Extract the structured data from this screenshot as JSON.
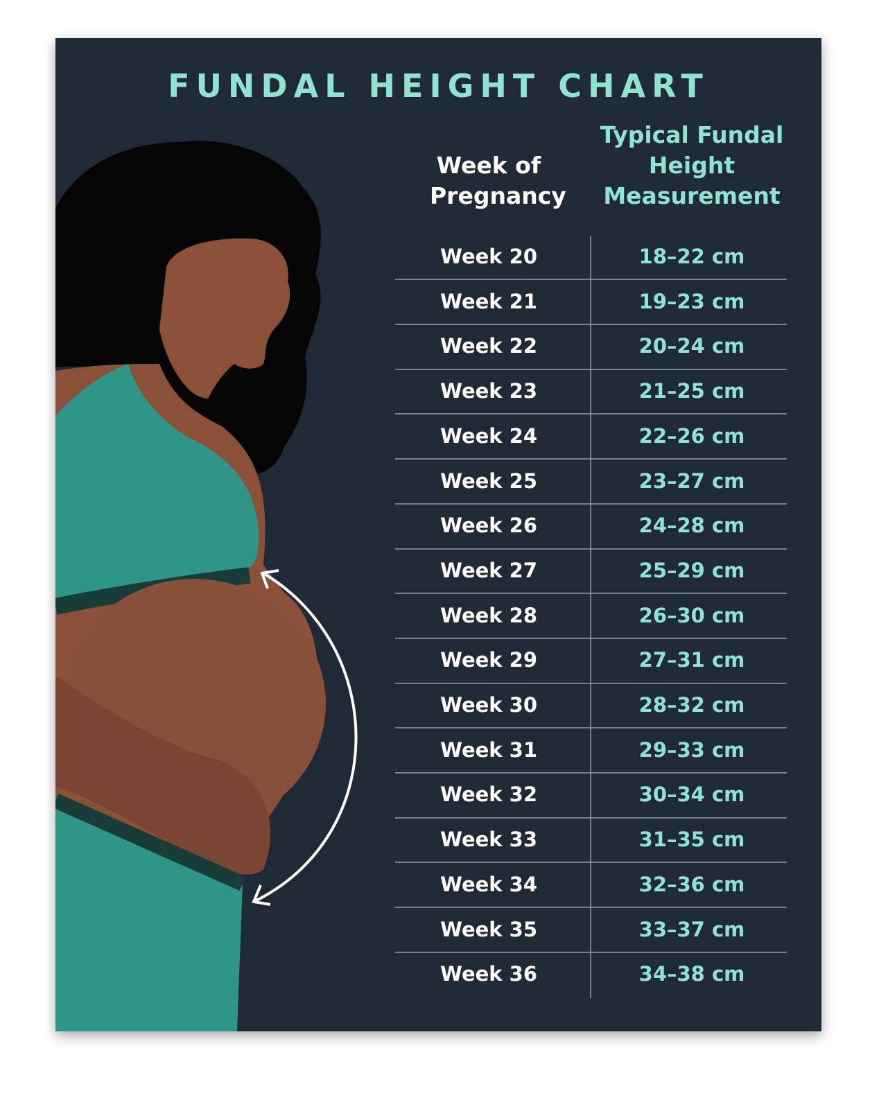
{
  "header": {
    "title": "FUNDAL HEIGHT CHART"
  },
  "table": {
    "columns": [
      "Week of Pregnancy",
      "Typical Fundal Height Measurement"
    ],
    "rows": [
      [
        "Week 20",
        "18–22 cm"
      ],
      [
        "Week 21",
        "19–23 cm"
      ],
      [
        "Week 22",
        "20–24 cm"
      ],
      [
        "Week 23",
        "21–25 cm"
      ],
      [
        "Week 24",
        "22–26 cm"
      ],
      [
        "Week 25",
        "23–27 cm"
      ],
      [
        "Week 26",
        "24–28 cm"
      ],
      [
        "Week 27",
        "25–29 cm"
      ],
      [
        "Week 28",
        "26–30 cm"
      ],
      [
        "Week 29",
        "27–31 cm"
      ],
      [
        "Week 30",
        "28–32 cm"
      ],
      [
        "Week 31",
        "29–33 cm"
      ],
      [
        "Week 32",
        "30–34 cm"
      ],
      [
        "Week 33",
        "31–35 cm"
      ],
      [
        "Week 34",
        "32–36 cm"
      ],
      [
        "Week 35",
        "33–37 cm"
      ],
      [
        "Week 36",
        "34–38 cm"
      ]
    ]
  }
}
